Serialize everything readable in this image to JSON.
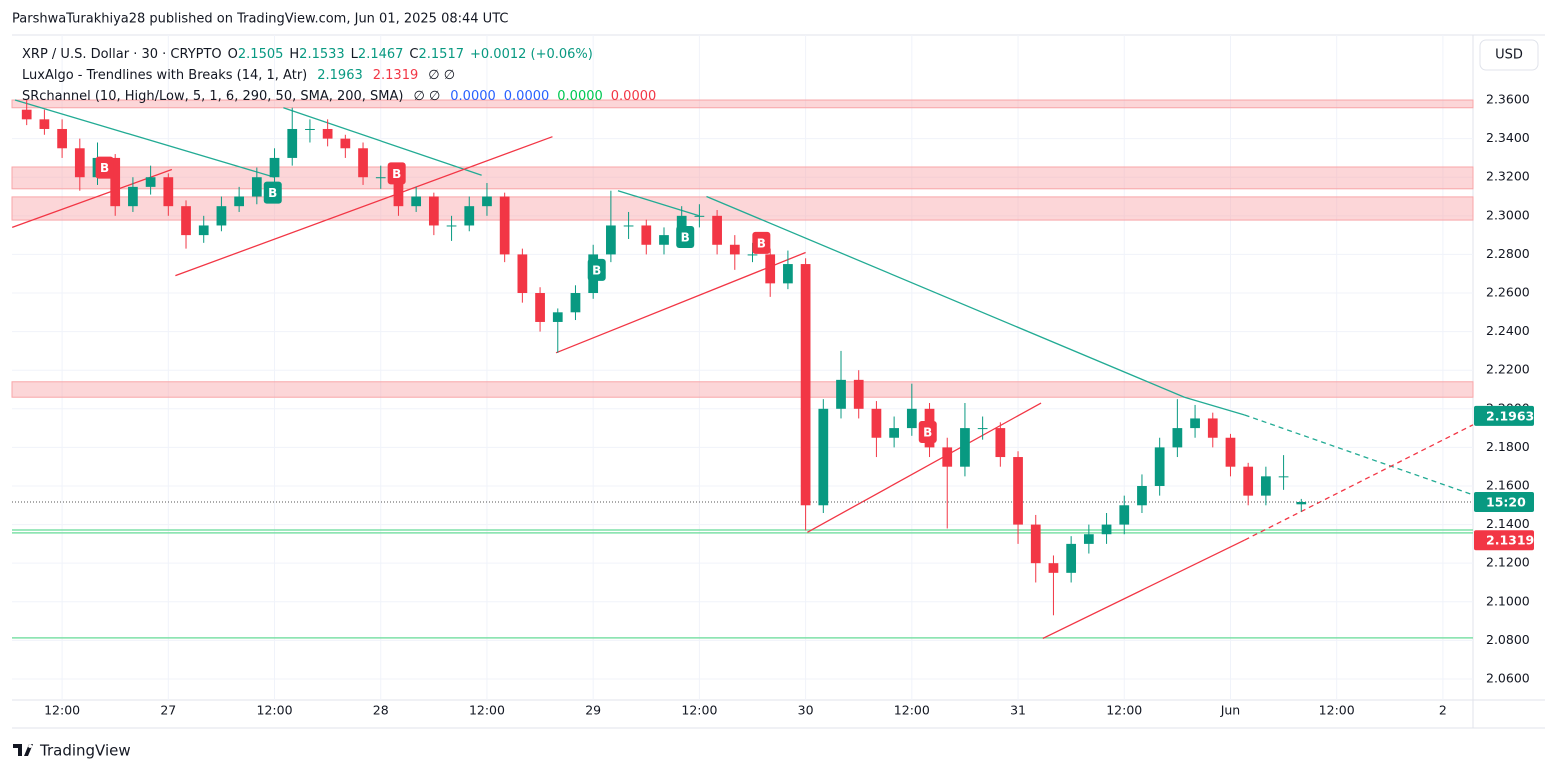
{
  "header": "ParshwaTurakhiya28 published on TradingView.com, Jun 01, 2025 08:44 UTC",
  "legend": {
    "symbol": "XRP / U.S. Dollar · 30 · CRYPTO",
    "o_label": "O",
    "o_value": "2.1505",
    "h_label": "H",
    "h_value": "2.1533",
    "l_label": "L",
    "l_value": "2.1467",
    "c_label": "C",
    "c_value": "2.1517",
    "change": "+0.0012 (+0.06%)",
    "indicator1": "LuxAlgo - Trendlines with Breaks (14, 1, Atr)",
    "indicator1_v1": "2.1963",
    "indicator1_v2": "2.1319",
    "indicator1_na": "∅ ∅",
    "indicator2": "SRchannel (10, High/Low, 5, 1, 6, 290, 50, SMA, 200, SMA)",
    "indicator2_na": "∅ ∅",
    "indicator2_v1": "0.0000",
    "indicator2_v2": "0.0000",
    "indicator2_v3": "0.0000",
    "indicator2_v4": "0.0000"
  },
  "currency_button": "USD",
  "watermark": "TradingView",
  "chart_data": {
    "type": "candlestick",
    "up_color": "#089981",
    "down_color": "#f23645",
    "xlim": [
      -0.83,
      81.7
    ],
    "xticks": [
      {
        "value": 2,
        "label": "12:00"
      },
      {
        "value": 8,
        "label": "27"
      },
      {
        "value": 14,
        "label": "12:00"
      },
      {
        "value": 20,
        "label": "28"
      },
      {
        "value": 26,
        "label": "12:00"
      },
      {
        "value": 32,
        "label": "29"
      },
      {
        "value": 38,
        "label": "12:00"
      },
      {
        "value": 44,
        "label": "30"
      },
      {
        "value": 50,
        "label": "12:00"
      },
      {
        "value": 56,
        "label": "31"
      },
      {
        "value": 62,
        "label": "12:00"
      },
      {
        "value": 68,
        "label": "Jun"
      },
      {
        "value": 74,
        "label": "12:00"
      },
      {
        "value": 80,
        "label": "2"
      }
    ],
    "ylim": [
      2.0491,
      2.3937
    ],
    "yticks": [
      {
        "value": 2.06,
        "label": "2.0600"
      },
      {
        "value": 2.08,
        "label": "2.0800"
      },
      {
        "value": 2.1,
        "label": "2.1000"
      },
      {
        "value": 2.12,
        "label": "2.1200"
      },
      {
        "value": 2.14,
        "label": "2.1400"
      },
      {
        "value": 2.16,
        "label": "2.1600"
      },
      {
        "value": 2.18,
        "label": "2.1800"
      },
      {
        "value": 2.2,
        "label": "2.2000"
      },
      {
        "value": 2.22,
        "label": "2.2200"
      },
      {
        "value": 2.24,
        "label": "2.2400"
      },
      {
        "value": 2.26,
        "label": "2.2600"
      },
      {
        "value": 2.28,
        "label": "2.2800"
      },
      {
        "value": 2.3,
        "label": "2.3000"
      },
      {
        "value": 2.32,
        "label": "2.3200"
      },
      {
        "value": 2.34,
        "label": "2.3400"
      },
      {
        "value": 2.36,
        "label": "2.3600"
      }
    ],
    "grid": true,
    "open": [
      2.355,
      2.35,
      2.345,
      2.335,
      2.32,
      2.33,
      2.305,
      2.315,
      2.32,
      2.305,
      2.29,
      2.295,
      2.305,
      2.31,
      2.32,
      2.33,
      2.345,
      2.345,
      2.34,
      2.335,
      2.32,
      2.32,
      2.305,
      2.31,
      2.295,
      2.295,
      2.305,
      2.31,
      2.28,
      2.26,
      2.245,
      2.25,
      2.26,
      2.28,
      2.295,
      2.295,
      2.285,
      2.29,
      2.3,
      2.3,
      2.285,
      2.28,
      2.28,
      2.265,
      2.275,
      2.15,
      2.2,
      2.215,
      2.2,
      2.185,
      2.19,
      2.2,
      2.18,
      2.17,
      2.19,
      2.19,
      2.175,
      2.14,
      2.12,
      2.115,
      2.13,
      2.135,
      2.14,
      2.15,
      2.16,
      2.18,
      2.19,
      2.195,
      2.185,
      2.17,
      2.155,
      2.165,
      2.1505
    ],
    "high": [
      2.36,
      2.355,
      2.35,
      2.34,
      2.338,
      2.332,
      2.32,
      2.326,
      2.322,
      2.308,
      2.3,
      2.31,
      2.315,
      2.325,
      2.335,
      2.356,
      2.35,
      2.35,
      2.342,
      2.338,
      2.326,
      2.324,
      2.315,
      2.312,
      2.3,
      2.31,
      2.317,
      2.312,
      2.283,
      2.263,
      2.252,
      2.264,
      2.285,
      2.313,
      2.302,
      2.298,
      2.294,
      2.305,
      2.306,
      2.303,
      2.29,
      2.286,
      2.283,
      2.282,
      2.278,
      2.205,
      2.23,
      2.22,
      2.204,
      2.196,
      2.213,
      2.203,
      2.185,
      2.203,
      2.196,
      2.193,
      2.178,
      2.145,
      2.124,
      2.134,
      2.14,
      2.146,
      2.155,
      2.166,
      2.185,
      2.205,
      2.202,
      2.198,
      2.187,
      2.172,
      2.17,
      2.176,
      2.1533
    ],
    "low": [
      2.347,
      2.342,
      2.33,
      2.313,
      2.316,
      2.3,
      2.302,
      2.311,
      2.3,
      2.283,
      2.286,
      2.292,
      2.302,
      2.306,
      2.316,
      2.326,
      2.338,
      2.336,
      2.33,
      2.316,
      2.314,
      2.3,
      2.302,
      2.29,
      2.287,
      2.292,
      2.3,
      2.276,
      2.255,
      2.24,
      2.229,
      2.246,
      2.257,
      2.276,
      2.288,
      2.28,
      2.28,
      2.286,
      2.294,
      2.28,
      2.272,
      2.276,
      2.258,
      2.262,
      2.137,
      2.146,
      2.195,
      2.195,
      2.175,
      2.18,
      2.186,
      2.175,
      2.138,
      2.165,
      2.184,
      2.17,
      2.13,
      2.11,
      2.093,
      2.11,
      2.125,
      2.13,
      2.135,
      2.146,
      2.155,
      2.175,
      2.185,
      2.18,
      2.165,
      2.15,
      2.15,
      2.158,
      2.1467
    ],
    "close": [
      2.35,
      2.345,
      2.335,
      2.32,
      2.33,
      2.305,
      2.315,
      2.32,
      2.305,
      2.29,
      2.295,
      2.305,
      2.31,
      2.32,
      2.33,
      2.345,
      2.345,
      2.34,
      2.335,
      2.32,
      2.32,
      2.305,
      2.31,
      2.295,
      2.295,
      2.305,
      2.31,
      2.28,
      2.26,
      2.245,
      2.25,
      2.26,
      2.28,
      2.295,
      2.295,
      2.285,
      2.29,
      2.3,
      2.3,
      2.285,
      2.28,
      2.28,
      2.265,
      2.275,
      2.15,
      2.2,
      2.215,
      2.2,
      2.185,
      2.19,
      2.2,
      2.18,
      2.17,
      2.19,
      2.19,
      2.175,
      2.14,
      2.12,
      2.115,
      2.13,
      2.135,
      2.14,
      2.15,
      2.16,
      2.18,
      2.19,
      2.195,
      2.185,
      2.17,
      2.155,
      2.165,
      2.165,
      2.1517
    ],
    "zones": [
      {
        "y": [
          2.356,
          2.36
        ]
      },
      {
        "y": [
          2.314,
          2.3253
        ]
      },
      {
        "y": [
          2.2978,
          2.3098
        ]
      },
      {
        "y": [
          2.206,
          2.214
        ]
      }
    ],
    "zone_color": "#f8a5a8",
    "levels": [
      {
        "y": 2.1372,
        "color": "#7ee0a8"
      },
      {
        "y": 2.1357,
        "color": "#7ee0a8"
      },
      {
        "y": 2.0813,
        "color": "#7ee0a8"
      }
    ],
    "trendlines": [
      {
        "x": [
          -0.66,
          14.0
        ],
        "y": [
          2.36,
          2.32
        ],
        "color": "#22ab94",
        "dashed": false
      },
      {
        "x": [
          14.5,
          25.7
        ],
        "y": [
          2.356,
          2.321
        ],
        "color": "#22ab94",
        "dashed": false
      },
      {
        "x": [
          33.4,
          38.0
        ],
        "y": [
          2.313,
          2.3
        ],
        "color": "#22ab94",
        "dashed": false
      },
      {
        "x": [
          38.4,
          65.4
        ],
        "y": [
          2.31,
          2.206
        ],
        "color": "#22ab94",
        "dashed": false
      },
      {
        "x": [
          65.4,
          68.8
        ],
        "y": [
          2.206,
          2.1968
        ],
        "color": "#22ab94",
        "dashed": false
      },
      {
        "x": [
          68.8,
          81.7
        ],
        "y": [
          2.1968,
          2.1554
        ],
        "color": "#22ab94",
        "dashed": true
      },
      {
        "x": [
          -0.82,
          8.2
        ],
        "y": [
          2.294,
          2.324
        ],
        "color": "#f23645",
        "dashed": false
      },
      {
        "x": [
          8.4,
          29.7
        ],
        "y": [
          2.269,
          2.341
        ],
        "color": "#f23645",
        "dashed": false
      },
      {
        "x": [
          29.9,
          44.0
        ],
        "y": [
          2.229,
          2.281
        ],
        "color": "#f23645",
        "dashed": false
      },
      {
        "x": [
          44.1,
          57.3
        ],
        "y": [
          2.136,
          2.203
        ],
        "color": "#f23645",
        "dashed": false
      },
      {
        "x": [
          57.4,
          68.8
        ],
        "y": [
          2.081,
          2.132
        ],
        "color": "#f23645",
        "dashed": false
      },
      {
        "x": [
          68.8,
          81.7
        ],
        "y": [
          2.132,
          2.1917
        ],
        "color": "#f23645",
        "dashed": true
      }
    ],
    "signals": [
      {
        "label": "B",
        "x": 4.4,
        "y": 2.325,
        "color": "#f23645"
      },
      {
        "label": "B",
        "x": 20.9,
        "y": 2.322,
        "color": "#f23645"
      },
      {
        "label": "B",
        "x": 41.5,
        "y": 2.286,
        "color": "#f23645"
      },
      {
        "label": "B",
        "x": 50.9,
        "y": 2.188,
        "color": "#f23645"
      },
      {
        "label": "B",
        "x": 13.9,
        "y": 2.312,
        "color": "#089981"
      },
      {
        "label": "B",
        "x": 32.2,
        "y": 2.272,
        "color": "#089981"
      },
      {
        "label": "B",
        "x": 37.2,
        "y": 2.289,
        "color": "#089981"
      }
    ],
    "price_tags": [
      {
        "value": 2.1963,
        "label": "2.1963",
        "color": "#089981"
      },
      {
        "value": 2.1517,
        "label": "15:20",
        "color": "#089981"
      },
      {
        "value": 2.1319,
        "label": "2.1319",
        "color": "#f23645"
      }
    ]
  }
}
